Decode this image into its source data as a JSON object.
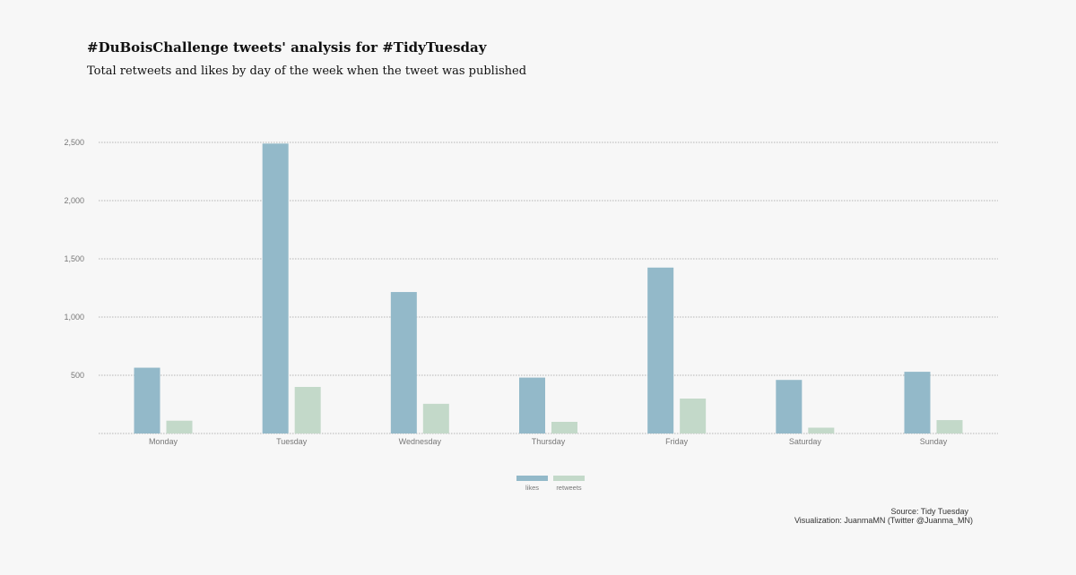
{
  "title": "#DuBoisChallenge tweets' analysis for #TidyTuesday",
  "subtitle": "Total retweets and likes by day of the week when the tweet was published",
  "caption": {
    "source": "Source: Tidy Tuesday",
    "credit": "Visualization: JuanmaMN (Twitter @Juanma_MN)"
  },
  "colors": {
    "likes": "#93b9c9",
    "retweets": "#c3d9c9",
    "grid": "#b5b5b5",
    "background": "#f7f7f7"
  },
  "chart_data": {
    "type": "bar",
    "categories": [
      "Monday",
      "Tuesday",
      "Wednesday",
      "Thursday",
      "Friday",
      "Saturday",
      "Sunday"
    ],
    "series": [
      {
        "name": "likes",
        "values": [
          565,
          2490,
          1215,
          480,
          1425,
          460,
          530
        ]
      },
      {
        "name": "retweets",
        "values": [
          110,
          400,
          255,
          100,
          300,
          50,
          115
        ]
      }
    ],
    "yticks": [
      500,
      1000,
      1500,
      2000,
      2500
    ],
    "ytick_labels": [
      "500",
      "1,000",
      "1,500",
      "2,000",
      "2,500"
    ],
    "ylim": [
      0,
      2500
    ],
    "grid": true,
    "legend": "bottom-center"
  }
}
